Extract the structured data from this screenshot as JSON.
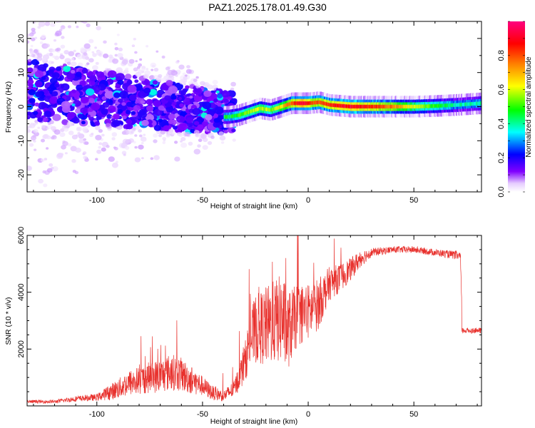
{
  "title": "PAZ1.2025.178.01.49.G30",
  "chart_data": [
    {
      "type": "heatmap",
      "title": "PAZ1.2025.178.01.49.G30",
      "xlabel": "Height of straight line (km)",
      "ylabel": "Frequency (Hz)",
      "xlim": [
        -133,
        82
      ],
      "ylim": [
        -25,
        25
      ],
      "xticks": [
        -100,
        -50,
        0,
        50
      ],
      "yticks": [
        -20,
        -10,
        0,
        10,
        20
      ],
      "colorbar": {
        "label": "Normalized spectral amplitude",
        "range": [
          0,
          1
        ],
        "ticks": [
          0.0,
          0.2,
          0.4,
          0.6,
          0.8
        ],
        "tick_labels": [
          "0.0",
          "0.2",
          "0.4",
          "0.6",
          "0.8"
        ],
        "colormap": [
          "#ffffff",
          "#e6ccff",
          "#8000ff",
          "#0000ff",
          "#00ffff",
          "#00ff00",
          "#ffff00",
          "#ff8000",
          "#ff0000",
          "#ff0080"
        ]
      },
      "ridge": {
        "x": [
          -38,
          -33,
          -28,
          -23,
          -18,
          -13,
          -8,
          -3,
          0,
          5,
          10,
          20,
          30,
          40,
          50,
          60,
          70,
          82
        ],
        "freq_hz": [
          -3,
          -2.5,
          -1.5,
          -0.5,
          -1,
          0,
          1,
          1,
          1,
          1.3,
          0.5,
          0,
          0,
          0,
          0,
          0.2,
          0.5,
          1
        ],
        "peak_amplitude": [
          0.45,
          0.5,
          0.55,
          0.6,
          0.55,
          0.65,
          0.8,
          0.95,
          0.85,
          0.8,
          0.85,
          0.9,
          0.85,
          0.75,
          0.6,
          0.5,
          0.4,
          0.4
        ]
      },
      "scatter_region": {
        "x_range": [
          -133,
          -35
        ],
        "freq_spread_hz": [
          -25,
          25
        ],
        "typical_amplitude": [
          0.05,
          0.3
        ]
      }
    },
    {
      "type": "line",
      "xlabel": "Height of straight line (km)",
      "ylabel": "SNR (10 * v/v)",
      "xlim": [
        -133,
        82
      ],
      "ylim": [
        0,
        6000
      ],
      "xticks": [
        -100,
        -50,
        0,
        50
      ],
      "yticks": [
        2000,
        4000,
        6000
      ],
      "color": "#e8312d",
      "series": [
        {
          "x": [
            -133,
            -120,
            -110,
            -100,
            -95,
            -90,
            -85,
            -80,
            -75,
            -70,
            -65,
            -60,
            -55,
            -50,
            -45,
            -40,
            -35,
            -30,
            -28,
            -25,
            -20,
            -15,
            -12,
            -10,
            -5,
            0,
            5,
            10,
            15,
            20,
            25,
            30,
            40,
            50,
            60,
            70,
            72,
            73,
            80,
            82
          ],
          "y": [
            150,
            150,
            250,
            300,
            450,
            600,
            800,
            900,
            1000,
            1050,
            1200,
            1100,
            900,
            700,
            450,
            350,
            600,
            1500,
            2200,
            2700,
            2800,
            3000,
            3100,
            2600,
            3200,
            3300,
            3600,
            4300,
            4500,
            4800,
            5200,
            5400,
            5500,
            5500,
            5400,
            5300,
            5250,
            2650,
            2650,
            2650
          ],
          "noise": [
            60,
            60,
            100,
            120,
            250,
            350,
            450,
            500,
            550,
            600,
            650,
            600,
            500,
            350,
            250,
            200,
            300,
            700,
            900,
            1200,
            1400,
            1500,
            1600,
            1400,
            1100,
            1000,
            900,
            600,
            500,
            400,
            300,
            150,
            120,
            120,
            120,
            150,
            200,
            120,
            120,
            120
          ]
        }
      ]
    }
  ]
}
